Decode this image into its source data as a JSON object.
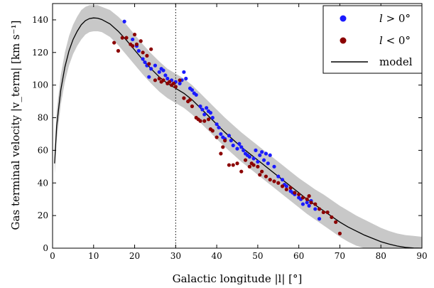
{
  "chart_data": {
    "type": "scatter",
    "title": "",
    "xlabel": "Galactic longitude |l| [°]",
    "ylabel": "Gas terminal velocity |v_term| [km s⁻¹]",
    "xlim": [
      0,
      90
    ],
    "ylim": [
      0,
      150
    ],
    "xticks": [
      0,
      10,
      20,
      30,
      40,
      50,
      60,
      70,
      80,
      90
    ],
    "yticks": [
      0,
      20,
      40,
      60,
      80,
      100,
      120,
      140
    ],
    "grid": false,
    "legend_position": "top-right",
    "reference_line": {
      "x": 30,
      "style": "dotted"
    },
    "colors": {
      "positive": "#1a1aff",
      "negative": "#8b0000",
      "model": "#000000",
      "band": "#c8c8c8"
    },
    "series": [
      {
        "name": "l > 0°",
        "kind": "points",
        "points": [
          [
            17.5,
            139
          ],
          [
            19.5,
            128
          ],
          [
            20.5,
            124
          ],
          [
            21,
            121
          ],
          [
            22,
            116
          ],
          [
            22.5,
            114
          ],
          [
            23,
            112
          ],
          [
            23.5,
            105
          ],
          [
            24,
            110
          ],
          [
            25,
            112
          ],
          [
            26,
            108
          ],
          [
            26.5,
            110
          ],
          [
            27,
            109
          ],
          [
            27.5,
            106
          ],
          [
            28,
            104
          ],
          [
            29,
            103
          ],
          [
            30,
            102
          ],
          [
            31,
            101
          ],
          [
            31.5,
            103
          ],
          [
            32,
            108
          ],
          [
            32.5,
            104
          ],
          [
            33.5,
            98
          ],
          [
            34,
            97
          ],
          [
            34.5,
            95
          ],
          [
            35,
            94
          ],
          [
            36,
            87
          ],
          [
            36.5,
            85
          ],
          [
            37,
            82
          ],
          [
            37.5,
            86
          ],
          [
            38,
            84
          ],
          [
            38.5,
            83
          ],
          [
            39,
            80
          ],
          [
            40,
            76
          ],
          [
            40.5,
            74
          ],
          [
            41,
            70
          ],
          [
            41.5,
            68
          ],
          [
            42,
            67
          ],
          [
            43,
            69
          ],
          [
            43.5,
            66
          ],
          [
            44,
            63
          ],
          [
            45,
            61
          ],
          [
            45.5,
            64
          ],
          [
            46,
            62
          ],
          [
            46.5,
            60
          ],
          [
            47,
            58
          ],
          [
            47.5,
            57
          ],
          [
            48,
            56
          ],
          [
            49,
            55
          ],
          [
            49.5,
            60
          ],
          [
            50,
            53
          ],
          [
            50.5,
            57
          ],
          [
            51,
            59
          ],
          [
            51.5,
            54
          ],
          [
            52,
            58
          ],
          [
            52.5,
            52
          ],
          [
            53,
            57
          ],
          [
            54,
            50
          ],
          [
            55,
            44
          ],
          [
            56,
            42
          ],
          [
            56.5,
            39
          ],
          [
            57,
            38
          ],
          [
            58,
            35
          ],
          [
            58.5,
            34
          ],
          [
            59,
            33
          ],
          [
            60,
            31
          ],
          [
            60.5,
            30
          ],
          [
            61,
            27
          ],
          [
            62,
            28
          ],
          [
            62.5,
            26
          ],
          [
            63,
            29
          ],
          [
            64,
            24
          ],
          [
            65,
            18
          ]
        ]
      },
      {
        "name": "l < 0°",
        "kind": "points",
        "points": [
          [
            15,
            126
          ],
          [
            16,
            121
          ],
          [
            17,
            129
          ],
          [
            18,
            129
          ],
          [
            19,
            125
          ],
          [
            19.5,
            124
          ],
          [
            20,
            131
          ],
          [
            20.5,
            125
          ],
          [
            21.5,
            127
          ],
          [
            22,
            120
          ],
          [
            23,
            118
          ],
          [
            23.5,
            113
          ],
          [
            24,
            122
          ],
          [
            25,
            103
          ],
          [
            26,
            104
          ],
          [
            26.5,
            102
          ],
          [
            27,
            103
          ],
          [
            28,
            101
          ],
          [
            28.5,
            102
          ],
          [
            29,
            100
          ],
          [
            29.5,
            101
          ],
          [
            30,
            99
          ],
          [
            31,
            103
          ],
          [
            32,
            92
          ],
          [
            33,
            90
          ],
          [
            33.5,
            91
          ],
          [
            34,
            87
          ],
          [
            35,
            80
          ],
          [
            35.5,
            79
          ],
          [
            36,
            78
          ],
          [
            37,
            78
          ],
          [
            38,
            79
          ],
          [
            38.5,
            73
          ],
          [
            39,
            72
          ],
          [
            40,
            68
          ],
          [
            41,
            58
          ],
          [
            41.5,
            62
          ],
          [
            42,
            66
          ],
          [
            43,
            51
          ],
          [
            44,
            51
          ],
          [
            45,
            52
          ],
          [
            46,
            47
          ],
          [
            47,
            54
          ],
          [
            48,
            50
          ],
          [
            48.5,
            52
          ],
          [
            49,
            51
          ],
          [
            50,
            50
          ],
          [
            50.5,
            45
          ],
          [
            51,
            47
          ],
          [
            52,
            44
          ],
          [
            53,
            42
          ],
          [
            54,
            41
          ],
          [
            55,
            40
          ],
          [
            56,
            38
          ],
          [
            57,
            36
          ],
          [
            58,
            37
          ],
          [
            59,
            34
          ],
          [
            60,
            33
          ],
          [
            61,
            31
          ],
          [
            62,
            30
          ],
          [
            62.5,
            32
          ],
          [
            63,
            28
          ],
          [
            64,
            27
          ],
          [
            65,
            24
          ],
          [
            66,
            22
          ],
          [
            67,
            22
          ],
          [
            68,
            19
          ],
          [
            69,
            16
          ],
          [
            70,
            9
          ]
        ]
      },
      {
        "name": "model",
        "kind": "line",
        "x": [
          0.5,
          1,
          2,
          3,
          4,
          5,
          6,
          7,
          8,
          9,
          10,
          11,
          12,
          14,
          16,
          18,
          20,
          22,
          24,
          26,
          28,
          30,
          32,
          34,
          36,
          38,
          40,
          42,
          44,
          46,
          48,
          50,
          52,
          54,
          56,
          58,
          60,
          62,
          64,
          66,
          68,
          70,
          72,
          74,
          76,
          78,
          80,
          82,
          84,
          86,
          88,
          90
        ],
        "y": [
          52,
          75,
          97,
          111,
          121,
          128,
          133,
          137,
          139.5,
          140.8,
          141.2,
          141.0,
          140.2,
          137.5,
          133,
          127.5,
          121.5,
          115.5,
          110,
          105,
          101,
          98,
          95,
          91,
          86,
          81,
          76,
          71,
          66.5,
          62,
          58,
          54,
          50,
          46,
          42,
          38,
          34,
          30,
          26.5,
          23,
          19.5,
          16,
          13,
          10.5,
          8,
          6,
          4,
          2.5,
          1.3,
          0.5,
          0.1,
          0
        ],
        "band_upper": [
          59,
          84,
          106,
          120,
          130,
          137,
          142,
          146,
          148,
          149,
          149,
          149,
          148,
          146,
          142,
          137,
          131,
          125,
          119.5,
          114.5,
          110,
          107,
          104,
          100,
          95,
          90,
          85,
          80,
          75.5,
          71,
          67,
          63,
          59,
          55,
          51,
          47,
          43,
          39.5,
          36,
          33,
          29.5,
          26,
          23,
          20,
          17.5,
          15,
          12.5,
          10.5,
          9,
          8,
          7.5,
          7
        ],
        "band_lower": [
          45,
          66,
          88,
          102,
          112,
          119,
          124,
          128,
          131,
          132.5,
          133,
          133,
          132.5,
          129.5,
          124.5,
          118.5,
          112.5,
          106.5,
          101,
          96,
          92,
          89,
          86,
          82,
          77,
          72,
          67,
          62,
          57.5,
          53,
          49,
          45,
          41,
          37,
          33,
          29,
          25,
          21,
          17.5,
          14,
          10.5,
          7,
          4,
          1.5,
          0,
          0,
          0,
          0,
          0,
          0,
          0,
          0
        ]
      }
    ]
  },
  "legend": {
    "items": [
      {
        "label_var": "l",
        "label_rest": " > 0°",
        "marker": "dot-blue"
      },
      {
        "label_var": "l",
        "label_rest": " < 0°",
        "marker": "dot-red"
      },
      {
        "label_var": "",
        "label_rest": "model",
        "marker": "line-black"
      }
    ]
  }
}
